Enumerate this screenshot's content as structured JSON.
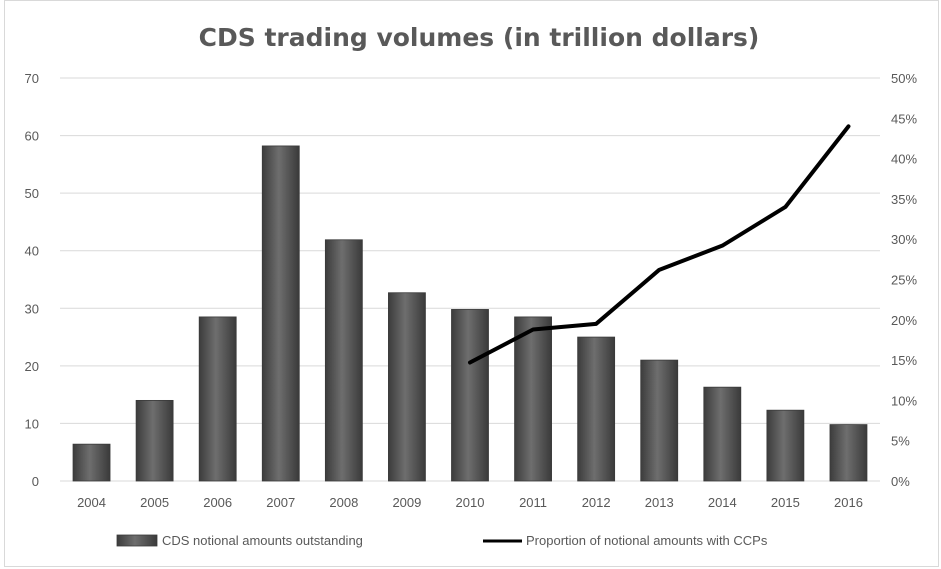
{
  "chart_data": {
    "type": "bar",
    "title": "CDS trading volumes (in trillion dollars)",
    "categories": [
      "2004",
      "2005",
      "2006",
      "2007",
      "2008",
      "2009",
      "2010",
      "2011",
      "2012",
      "2013",
      "2014",
      "2015",
      "2016"
    ],
    "series": [
      {
        "name": "CDS notional amounts outstanding",
        "type": "bar",
        "axis": "left",
        "values": [
          6.4,
          14.0,
          28.5,
          58.2,
          41.9,
          32.7,
          29.8,
          28.5,
          25.0,
          21.0,
          16.3,
          12.3,
          9.8
        ]
      },
      {
        "name": "Proportion of notional amounts with CCPs",
        "type": "line",
        "axis": "right",
        "values": [
          null,
          null,
          null,
          null,
          null,
          null,
          0.147,
          0.188,
          0.195,
          0.262,
          0.292,
          0.34,
          0.44
        ]
      }
    ],
    "y_left": {
      "min": 0,
      "max": 70,
      "ticks": [
        0,
        10,
        20,
        30,
        40,
        50,
        60,
        70
      ]
    },
    "y_right": {
      "min": 0,
      "max": 0.5,
      "ticks": [
        0,
        0.05,
        0.1,
        0.15,
        0.2,
        0.25,
        0.3,
        0.35,
        0.4,
        0.45,
        0.5
      ],
      "tick_labels": [
        "0%",
        "5%",
        "10%",
        "15%",
        "20%",
        "25%",
        "30%",
        "35%",
        "40%",
        "45%",
        "50%"
      ]
    },
    "grid": true,
    "legend_position": "bottom",
    "colors": {
      "bar": "#5a5a5a",
      "bar_edge": "#3a3a3a",
      "line": "#000000",
      "grid": "#d9d9d9",
      "text": "#595959"
    }
  }
}
